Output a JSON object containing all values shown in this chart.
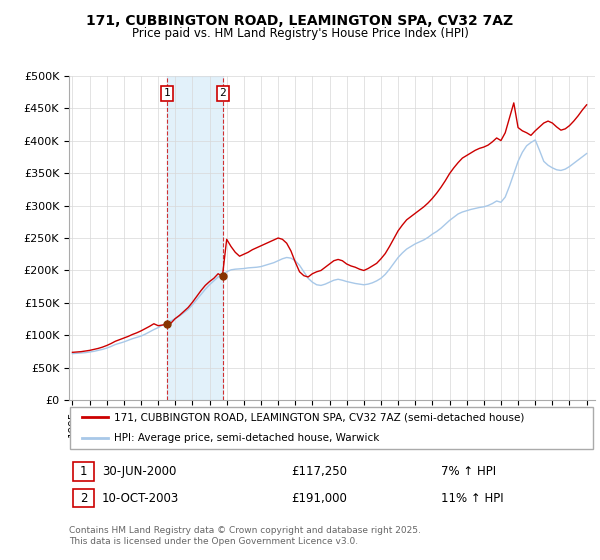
{
  "title": "171, CUBBINGTON ROAD, LEAMINGTON SPA, CV32 7AZ",
  "subtitle": "Price paid vs. HM Land Registry's House Price Index (HPI)",
  "ylabel_ticks": [
    "£0",
    "£50K",
    "£100K",
    "£150K",
    "£200K",
    "£250K",
    "£300K",
    "£350K",
    "£400K",
    "£450K",
    "£500K"
  ],
  "ytick_values": [
    0,
    50000,
    100000,
    150000,
    200000,
    250000,
    300000,
    350000,
    400000,
    450000,
    500000
  ],
  "ylim": [
    0,
    500000
  ],
  "xlim_start": 1994.8,
  "xlim_end": 2025.5,
  "legend_line1": "171, CUBBINGTON ROAD, LEAMINGTON SPA, CV32 7AZ (semi-detached house)",
  "legend_line2": "HPI: Average price, semi-detached house, Warwick",
  "sale1_label": "1",
  "sale1_date": "30-JUN-2000",
  "sale1_price": "£117,250",
  "sale1_hpi": "7% ↑ HPI",
  "sale2_label": "2",
  "sale2_date": "10-OCT-2003",
  "sale2_price": "£191,000",
  "sale2_hpi": "11% ↑ HPI",
  "footer": "Contains HM Land Registry data © Crown copyright and database right 2025.\nThis data is licensed under the Open Government Licence v3.0.",
  "red_color": "#cc0000",
  "blue_color": "#a8c8e8",
  "sale1_x": 2000.5,
  "sale1_y": 117250,
  "sale2_x": 2003.78,
  "sale2_y": 191000,
  "hpi_years": [
    1995.0,
    1995.25,
    1995.5,
    1995.75,
    1996.0,
    1996.25,
    1996.5,
    1996.75,
    1997.0,
    1997.25,
    1997.5,
    1997.75,
    1998.0,
    1998.25,
    1998.5,
    1998.75,
    1999.0,
    1999.25,
    1999.5,
    1999.75,
    2000.0,
    2000.25,
    2000.5,
    2000.75,
    2001.0,
    2001.25,
    2001.5,
    2001.75,
    2002.0,
    2002.25,
    2002.5,
    2002.75,
    2003.0,
    2003.25,
    2003.5,
    2003.75,
    2004.0,
    2004.25,
    2004.5,
    2004.75,
    2005.0,
    2005.25,
    2005.5,
    2005.75,
    2006.0,
    2006.25,
    2006.5,
    2006.75,
    2007.0,
    2007.25,
    2007.5,
    2007.75,
    2008.0,
    2008.25,
    2008.5,
    2008.75,
    2009.0,
    2009.25,
    2009.5,
    2009.75,
    2010.0,
    2010.25,
    2010.5,
    2010.75,
    2011.0,
    2011.25,
    2011.5,
    2011.75,
    2012.0,
    2012.25,
    2012.5,
    2012.75,
    2013.0,
    2013.25,
    2013.5,
    2013.75,
    2014.0,
    2014.25,
    2014.5,
    2014.75,
    2015.0,
    2015.25,
    2015.5,
    2015.75,
    2016.0,
    2016.25,
    2016.5,
    2016.75,
    2017.0,
    2017.25,
    2017.5,
    2017.75,
    2018.0,
    2018.25,
    2018.5,
    2018.75,
    2019.0,
    2019.25,
    2019.5,
    2019.75,
    2020.0,
    2020.25,
    2020.5,
    2020.75,
    2021.0,
    2021.25,
    2021.5,
    2021.75,
    2022.0,
    2022.25,
    2022.5,
    2022.75,
    2023.0,
    2023.25,
    2023.5,
    2023.75,
    2024.0,
    2024.25,
    2024.5,
    2024.75,
    2025.0
  ],
  "hpi_values": [
    72000,
    72500,
    73000,
    73500,
    74500,
    75500,
    77000,
    78500,
    80500,
    83000,
    86000,
    88000,
    90000,
    92500,
    95000,
    97000,
    99000,
    102000,
    105500,
    109000,
    112000,
    116000,
    119000,
    122500,
    126000,
    130000,
    135000,
    140000,
    147000,
    155000,
    163000,
    171000,
    178000,
    184000,
    190000,
    194000,
    198000,
    201000,
    202000,
    202500,
    203000,
    204000,
    204500,
    205000,
    206000,
    208000,
    210000,
    212000,
    215000,
    218000,
    220000,
    219000,
    215000,
    208000,
    198000,
    188000,
    182000,
    178000,
    177000,
    179000,
    182000,
    185000,
    186500,
    185000,
    183000,
    181500,
    180000,
    179000,
    178000,
    179000,
    181000,
    184000,
    188000,
    194000,
    202000,
    211000,
    220000,
    227000,
    233000,
    237000,
    241000,
    244000,
    247000,
    251000,
    256000,
    260000,
    265000,
    271000,
    277000,
    282000,
    287000,
    290000,
    292000,
    294000,
    295500,
    297000,
    298000,
    300000,
    303000,
    307000,
    305000,
    313000,
    330000,
    349000,
    368000,
    382000,
    392000,
    397000,
    401000,
    385000,
    368000,
    362000,
    358000,
    355000,
    354000,
    356000,
    360000,
    365000,
    370000,
    375000,
    380000
  ],
  "red_years": [
    1995.0,
    1995.25,
    1995.5,
    1995.75,
    1996.0,
    1996.25,
    1996.5,
    1996.75,
    1997.0,
    1997.25,
    1997.5,
    1997.75,
    1998.0,
    1998.25,
    1998.5,
    1998.75,
    1999.0,
    1999.25,
    1999.5,
    1999.75,
    2000.0,
    2000.25,
    2000.5,
    2000.75,
    2001.0,
    2001.25,
    2001.5,
    2001.75,
    2002.0,
    2002.25,
    2002.5,
    2002.75,
    2003.0,
    2003.25,
    2003.5,
    2003.75,
    2004.0,
    2004.25,
    2004.5,
    2004.75,
    2005.0,
    2005.25,
    2005.5,
    2005.75,
    2006.0,
    2006.25,
    2006.5,
    2006.75,
    2007.0,
    2007.25,
    2007.5,
    2007.75,
    2008.0,
    2008.25,
    2008.5,
    2008.75,
    2009.0,
    2009.25,
    2009.5,
    2009.75,
    2010.0,
    2010.25,
    2010.5,
    2010.75,
    2011.0,
    2011.25,
    2011.5,
    2011.75,
    2012.0,
    2012.25,
    2012.5,
    2012.75,
    2013.0,
    2013.25,
    2013.5,
    2013.75,
    2014.0,
    2014.25,
    2014.5,
    2014.75,
    2015.0,
    2015.25,
    2015.5,
    2015.75,
    2016.0,
    2016.25,
    2016.5,
    2016.75,
    2017.0,
    2017.25,
    2017.5,
    2017.75,
    2018.0,
    2018.25,
    2018.5,
    2018.75,
    2019.0,
    2019.25,
    2019.5,
    2019.75,
    2020.0,
    2020.25,
    2020.5,
    2020.75,
    2021.0,
    2021.25,
    2021.5,
    2021.75,
    2022.0,
    2022.25,
    2022.5,
    2022.75,
    2023.0,
    2023.25,
    2023.5,
    2023.75,
    2024.0,
    2024.25,
    2024.5,
    2024.75,
    2025.0
  ],
  "red_values": [
    74000,
    74500,
    75000,
    76000,
    77000,
    78500,
    80000,
    82000,
    84500,
    87500,
    91000,
    93500,
    96000,
    98500,
    101500,
    104000,
    107000,
    110500,
    114000,
    118000,
    115000,
    116000,
    117250,
    119000,
    126000,
    131000,
    137000,
    143000,
    151000,
    160000,
    169000,
    177000,
    183000,
    188000,
    195000,
    191000,
    248000,
    237000,
    228000,
    222000,
    225000,
    228000,
    232000,
    235000,
    238000,
    241000,
    244000,
    247000,
    250000,
    248000,
    242000,
    230000,
    213000,
    198000,
    192000,
    190000,
    195000,
    198000,
    200000,
    205000,
    210000,
    215000,
    217000,
    215000,
    210000,
    207000,
    205000,
    202000,
    200000,
    203000,
    207000,
    211000,
    218000,
    226000,
    237000,
    249000,
    261000,
    270000,
    278000,
    283000,
    288000,
    293000,
    298000,
    304000,
    311000,
    319000,
    328000,
    338000,
    349000,
    358000,
    366000,
    373000,
    377000,
    381000,
    385000,
    388000,
    390000,
    393000,
    398000,
    404000,
    400000,
    412000,
    435000,
    458000,
    420000,
    415000,
    412000,
    408000,
    415000,
    421000,
    427000,
    430000,
    427000,
    421000,
    416000,
    418000,
    423000,
    430000,
    438000,
    447000,
    455000
  ],
  "xtick_years": [
    1995,
    1996,
    1997,
    1998,
    1999,
    2000,
    2001,
    2002,
    2003,
    2004,
    2005,
    2006,
    2007,
    2008,
    2009,
    2010,
    2011,
    2012,
    2013,
    2014,
    2015,
    2016,
    2017,
    2018,
    2019,
    2020,
    2021,
    2022,
    2023,
    2024,
    2025
  ],
  "shade_x1": 2000.5,
  "shade_x2": 2003.78
}
